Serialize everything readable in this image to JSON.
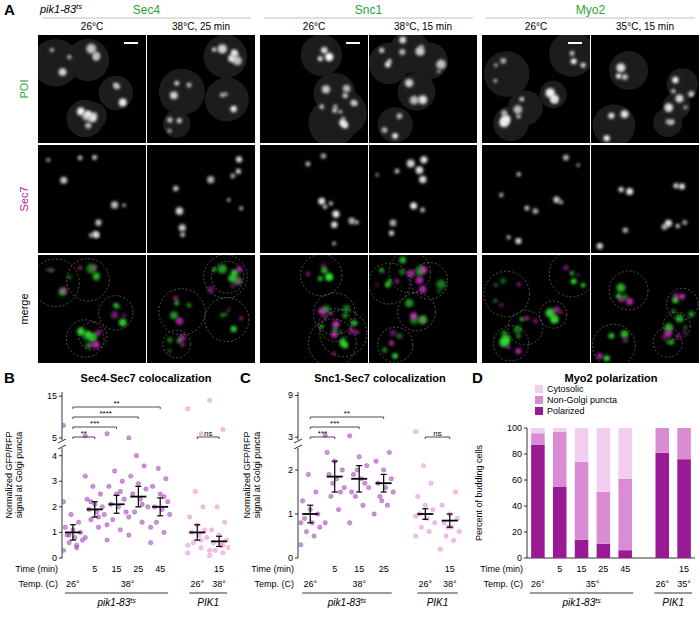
{
  "panel_labels": [
    "A",
    "B",
    "C",
    "D"
  ],
  "microscopy": {
    "strain": {
      "label": "pik1-83",
      "superscript": "ts"
    },
    "groups": [
      {
        "protein": "Sec4",
        "conditions": [
          "26°C",
          "38°C, 25 min"
        ]
      },
      {
        "protein": "Snc1",
        "conditions": [
          "26°C",
          "38°C, 15 min"
        ]
      },
      {
        "protein": "Myo2",
        "conditions": [
          "26°C",
          "35°C, 15 min"
        ]
      }
    ],
    "rows": [
      "POI",
      "Sec7",
      "merge"
    ]
  },
  "chart_data": [
    {
      "type": "strip",
      "title": "Sec4-Sec7 colocalization",
      "categories": [
        null,
        "5",
        "15",
        "25",
        "45",
        null,
        "15"
      ],
      "tick_labels": "y",
      "ylim": [
        4.5,
        16
      ],
      "yticks": [
        5,
        15
      ],
      "colors": [
        "#9c3fb0",
        "#9c3fb0",
        "#9c3fb0",
        "#9c3fb0",
        "#9c3fb0",
        "#e58ad9",
        "#e58ad9"
      ],
      "points": [
        [
          8
        ],
        [
          5.5
        ],
        [
          6
        ],
        [
          5
        ],
        [],
        [
          12,
          6
        ],
        [
          14,
          7
        ]
      ],
      "significance": [
        {
          "from": 0,
          "to": 1,
          "label": "**"
        },
        {
          "from": 0,
          "to": 2,
          "label": "***"
        },
        {
          "from": 0,
          "to": 3,
          "label": "****"
        },
        {
          "from": 0,
          "to": 4,
          "label": "**"
        },
        {
          "from": 5,
          "to": 6,
          "label": "ns"
        }
      ]
    },
    {
      "type": "strip",
      "categories": [
        null,
        "5",
        "15",
        "25",
        "45",
        null,
        "15"
      ],
      "ylabel": "Normalized GFP/RFP signal at Golgi puncta",
      "ylim": [
        0,
        4.3
      ],
      "yticks": [
        0,
        1,
        2,
        3,
        4
      ],
      "colors": [
        "#9c3fb0",
        "#9c3fb0",
        "#9c3fb0",
        "#9c3fb0",
        "#9c3fb0",
        "#e58ad9",
        "#e58ad9"
      ],
      "points": [
        [
          0.3,
          0.5,
          0.6,
          0.7,
          0.8,
          0.9,
          1.0,
          1.1,
          1.2,
          1.4,
          1.7,
          2.2,
          0.4,
          0.9
        ],
        [
          0.8,
          1.2,
          1.5,
          1.7,
          1.8,
          1.9,
          2.0,
          2.1,
          2.3,
          2.5,
          2.8,
          3.2,
          1.6,
          2.2
        ],
        [
          0.7,
          1.1,
          1.5,
          1.8,
          2.0,
          2.1,
          2.3,
          2.5,
          2.8,
          3.0,
          3.4,
          1.3,
          2.6
        ],
        [
          0.9,
          1.4,
          1.8,
          2.0,
          2.3,
          2.5,
          2.7,
          2.9,
          3.2,
          3.6,
          4.0,
          1.6,
          2.1
        ],
        [
          0.6,
          1.0,
          1.4,
          1.7,
          1.9,
          2.0,
          2.2,
          2.5,
          2.8,
          3.1,
          3.5,
          1.2,
          2.4
        ],
        [
          0.2,
          0.4,
          0.6,
          0.8,
          0.9,
          1.0,
          1.1,
          1.3,
          1.6,
          2.0,
          2.6,
          0.5,
          0.7
        ],
        [
          0.1,
          0.2,
          0.3,
          0.4,
          0.5,
          0.6,
          0.7,
          0.9,
          1.1,
          1.4,
          2.0,
          0.3,
          0.5
        ]
      ],
      "values": [
        1.0,
        1.9,
        2.1,
        2.4,
        2.0,
        1.0,
        0.65
      ],
      "errors": [
        0.3,
        0.3,
        0.35,
        0.4,
        0.35,
        0.3,
        0.2
      ],
      "x_row_labels": [
        "Time (min)",
        "Temp. (C)"
      ],
      "temp_groups": [
        {
          "label": "26°",
          "from": 0,
          "to": 0
        },
        {
          "label": "38°",
          "from": 1,
          "to": 4
        },
        {
          "label": "26°",
          "from": 5,
          "to": 5
        },
        {
          "label": "38°",
          "from": 6,
          "to": 6
        }
      ],
      "genotype_groups": [
        {
          "label": "pik1-83",
          "superscript": "ts",
          "from": 0,
          "to": 4
        },
        {
          "label": "PIK1",
          "from": 5,
          "to": 6
        }
      ]
    },
    {
      "type": "strip",
      "title": "Snc1-Sec7 colocalization",
      "categories": [
        null,
        "5",
        "15",
        "25",
        null,
        "15"
      ],
      "tick_labels": "y",
      "ylim": [
        2.6,
        9.5
      ],
      "yticks": [
        3,
        9
      ],
      "colors": [
        "#9c3fb0",
        "#9c3fb0",
        "#9c3fb0",
        "#9c3fb0",
        "#e58ad9",
        "#e58ad9"
      ],
      "points": [
        [],
        [
          3.3
        ],
        [
          3.2
        ],
        [],
        [
          3.8
        ],
        []
      ],
      "significance": [
        {
          "from": 0,
          "to": 1,
          "label": "***"
        },
        {
          "from": 0,
          "to": 2,
          "label": "***"
        },
        {
          "from": 0,
          "to": 3,
          "label": "**"
        },
        {
          "from": 4,
          "to": 5,
          "label": "ns"
        }
      ]
    },
    {
      "type": "strip",
      "categories": [
        null,
        "5",
        "15",
        "25",
        null,
        "15"
      ],
      "ylabel": "Normalized GFP/RFP signal at Golgi puncta",
      "ylim": [
        0,
        2.5
      ],
      "yticks": [
        0,
        1,
        2
      ],
      "colors": [
        "#9c3fb0",
        "#9c3fb0",
        "#9c3fb0",
        "#9c3fb0",
        "#e58ad9",
        "#e58ad9"
      ],
      "points": [
        [
          0.3,
          0.5,
          0.6,
          0.7,
          0.8,
          0.9,
          1.0,
          1.1,
          1.3,
          1.5,
          1.9,
          0.8
        ],
        [
          0.8,
          1.1,
          1.4,
          1.6,
          1.8,
          1.9,
          2.0,
          2.2,
          2.4,
          1.5,
          1.7
        ],
        [
          0.8,
          1.2,
          1.4,
          1.6,
          1.8,
          1.9,
          2.1,
          2.3,
          1.5,
          1.7,
          2.0
        ],
        [
          1.0,
          1.2,
          1.4,
          1.5,
          1.6,
          1.7,
          1.8,
          2.0,
          2.2,
          2.4,
          1.3
        ],
        [
          0.5,
          0.6,
          0.7,
          0.8,
          0.9,
          1.0,
          1.1,
          1.2,
          1.4,
          1.7,
          2.1,
          0.95
        ],
        [
          0.2,
          0.4,
          0.5,
          0.6,
          0.7,
          0.8,
          0.9,
          1.0,
          1.2,
          1.5,
          0.7
        ]
      ],
      "values": [
        1.0,
        1.85,
        1.8,
        1.7,
        1.0,
        0.85
      ],
      "errors": [
        0.2,
        0.35,
        0.3,
        0.2,
        0.12,
        0.15
      ],
      "x_row_labels": [
        "Time (min)",
        "Temp. (C)"
      ],
      "temp_groups": [
        {
          "label": "26°",
          "from": 0,
          "to": 0
        },
        {
          "label": "38°",
          "from": 1,
          "to": 3
        },
        {
          "label": "26°",
          "from": 4,
          "to": 4
        },
        {
          "label": "38°",
          "from": 5,
          "to": 5
        }
      ],
      "genotype_groups": [
        {
          "label": "pik1-83",
          "superscript": "ts",
          "from": 0,
          "to": 3
        },
        {
          "label": "PIK1",
          "from": 4,
          "to": 5
        }
      ]
    },
    {
      "type": "bar",
      "stacked": true,
      "title": "Myo2 polarization",
      "ylabel": "Percent of budding cells",
      "categories": [
        null,
        "5",
        "15",
        "25",
        "45",
        null,
        "15"
      ],
      "ylim": [
        0,
        100
      ],
      "yticks": [
        0,
        20,
        40,
        60,
        80,
        100
      ],
      "legend": "top-left",
      "series": [
        {
          "name": "Polarized",
          "color": "#9a1a96",
          "values": [
            87,
            55,
            14,
            11,
            6,
            81,
            76
          ]
        },
        {
          "name": "Non-Golgi puncta",
          "color": "#d98cd4",
          "values": [
            9,
            42,
            60,
            40,
            55,
            19,
            24
          ]
        },
        {
          "name": "Cytosolic",
          "color": "#f2cdef",
          "values": [
            4,
            3,
            26,
            49,
            39,
            0,
            0
          ]
        }
      ],
      "x_row_labels": [
        "Time (min)",
        "Temp. (C)"
      ],
      "temp_groups": [
        {
          "label": "26°",
          "from": 0,
          "to": 0
        },
        {
          "label": "35°",
          "from": 1,
          "to": 4
        },
        {
          "label": "26°",
          "from": 5,
          "to": 5
        },
        {
          "label": "35°",
          "from": 6,
          "to": 6
        }
      ],
      "genotype_groups": [
        {
          "label": "pik1-83",
          "superscript": "ts",
          "from": 0,
          "to": 4
        },
        {
          "label": "PIK1",
          "from": 5,
          "to": 6
        }
      ]
    }
  ]
}
